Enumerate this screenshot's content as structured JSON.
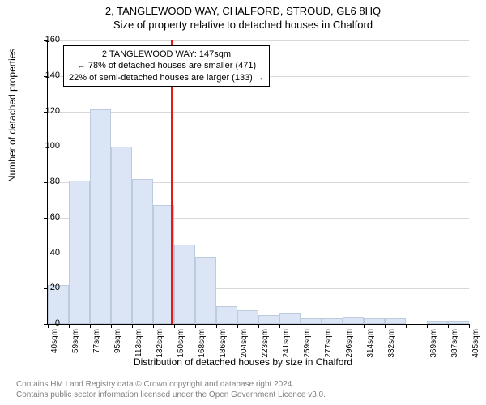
{
  "title_main": "2, TANGLEWOOD WAY, CHALFORD, STROUD, GL6 8HQ",
  "title_sub": "Size of property relative to detached houses in Chalford",
  "ylabel": "Number of detached properties",
  "xlabel": "Distribution of detached houses by size in Chalford",
  "footer_line1": "Contains HM Land Registry data © Crown copyright and database right 2024.",
  "footer_line2": "Contains public sector information licensed under the Open Government Licence v3.0.",
  "chart": {
    "type": "histogram",
    "ylim": [
      0,
      160
    ],
    "ytick_step": 20,
    "bar_color": "#dbe5f5",
    "bar_border_color": "#bcccde",
    "grid_color": "#d8d8d8",
    "vline_color": "#e61919",
    "vline_x": 147,
    "x_start": 40,
    "x_step": 18.3,
    "x_labels": [
      "40sqm",
      "59sqm",
      "77sqm",
      "95sqm",
      "113sqm",
      "132sqm",
      "150sqm",
      "168sqm",
      "186sqm",
      "204sqm",
      "223sqm",
      "241sqm",
      "259sqm",
      "277sqm",
      "296sqm",
      "314sqm",
      "332sqm",
      "",
      "369sqm",
      "387sqm",
      "405sqm"
    ],
    "values": [
      22,
      81,
      121,
      100,
      82,
      67,
      45,
      38,
      10,
      8,
      5,
      6,
      3,
      3,
      4,
      3,
      3,
      0,
      2,
      2
    ]
  },
  "callout": {
    "line1": "2 TANGLEWOOD WAY: 147sqm",
    "line2": "← 78% of detached houses are smaller (471)",
    "line3": "22% of semi-detached houses are larger (133) →"
  }
}
